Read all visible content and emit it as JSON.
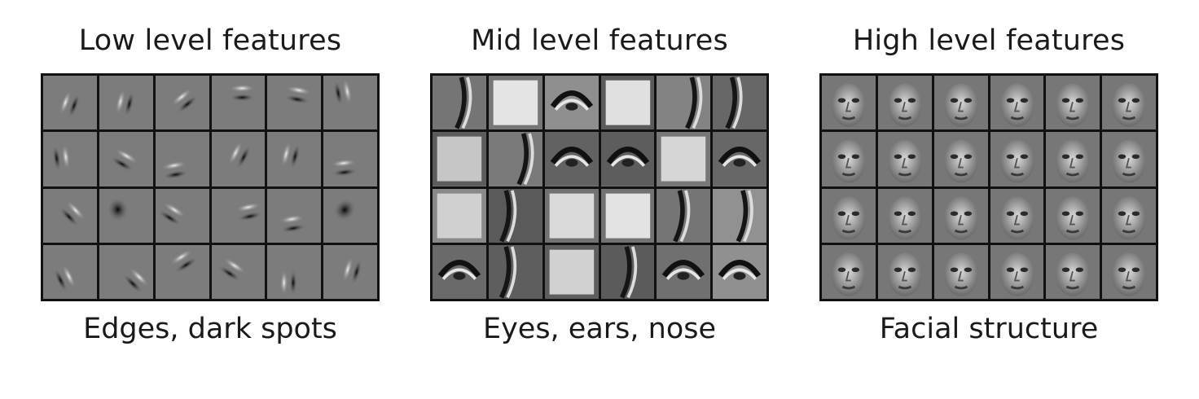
{
  "panels": [
    {
      "id": "low",
      "title": "Low level features",
      "caption": "Edges, dark spots"
    },
    {
      "id": "mid",
      "title": "Mid level features",
      "caption": "Eyes, ears, nose"
    },
    {
      "id": "high",
      "title": "High level features",
      "caption": "Facial structure"
    }
  ],
  "grid": {
    "rows": 4,
    "cols": 6
  }
}
